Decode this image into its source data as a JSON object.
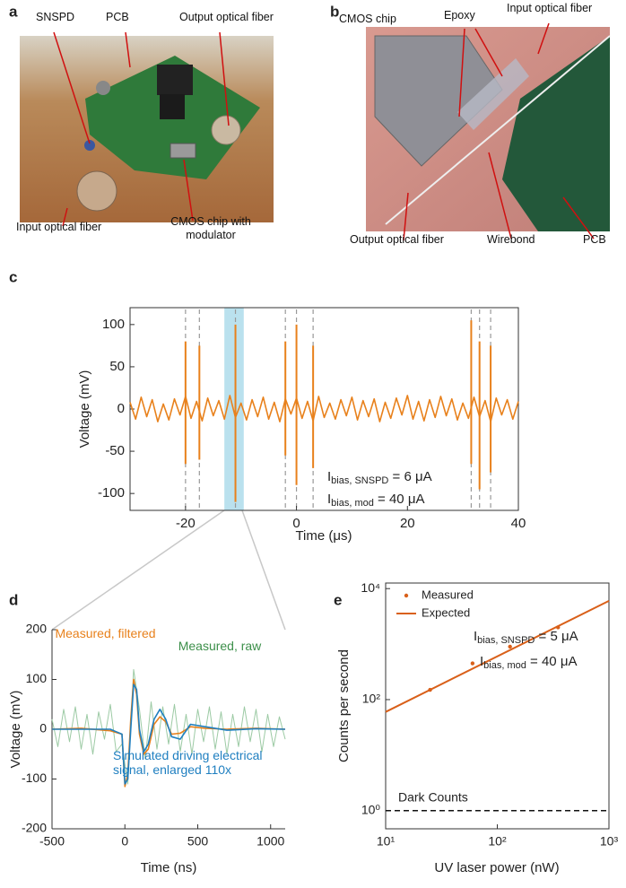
{
  "photos": [
    {
      "label": "a",
      "annotations": [
        "SNSPD",
        "PCB",
        "Output optical fiber",
        "Input optical fiber",
        "CMOS chip with modulator"
      ]
    },
    {
      "label": "b",
      "annotations": [
        "CMOS chip",
        "Epoxy",
        "Input optical fiber",
        "Output optical fiber",
        "Wirebond",
        "PCB"
      ]
    }
  ],
  "chart_data": [
    {
      "type": "line",
      "label": "c",
      "xlabel": "Time (μs)",
      "ylabel": "Voltage (mV)",
      "xlim": [
        -30,
        40
      ],
      "xticks": [
        -20,
        0,
        20,
        40
      ],
      "ylim": [
        -120,
        120
      ],
      "yticks": [
        -100,
        -50,
        0,
        50,
        100
      ],
      "highlight": [
        -13,
        -9.5
      ],
      "series": [
        {
          "color": "#e8811c",
          "x": [
            -30,
            -29,
            -28,
            -27,
            -26,
            -25,
            -24,
            -23,
            -22,
            -21,
            -20,
            -19,
            -18,
            -17,
            -16,
            -15,
            -14,
            -13,
            -12,
            -11,
            -10,
            -9,
            -8,
            -7,
            -6,
            -5,
            -4,
            -3,
            -2,
            -1,
            0,
            1,
            2,
            3,
            4,
            5,
            6,
            7,
            8,
            9,
            10,
            11,
            12,
            13,
            14,
            15,
            16,
            17,
            18,
            19,
            20,
            21,
            22,
            23,
            24,
            25,
            26,
            27,
            28,
            29,
            30,
            31,
            32,
            33,
            34,
            35,
            36,
            37,
            38,
            39,
            40
          ],
          "values": [
            8,
            -12,
            14,
            -9,
            11,
            -15,
            6,
            -13,
            12,
            -7,
            15,
            -11,
            9,
            -14,
            13,
            -8,
            10,
            -12,
            16,
            -10,
            7,
            -13,
            11,
            -9,
            14,
            -12,
            8,
            -15,
            12,
            -6,
            13,
            -11,
            9,
            -14,
            15,
            -10,
            7,
            -12,
            11,
            -8,
            14,
            -13,
            10,
            -9,
            12,
            -15,
            8,
            -11,
            13,
            -7,
            16,
            -12,
            9,
            -14,
            11,
            -10,
            15,
            -8,
            12,
            -13,
            7,
            -11,
            14,
            -9,
            10,
            -15,
            13,
            -7,
            11,
            -12,
            9
          ]
        }
      ],
      "spikes": {
        "x": [
          -20,
          -17.5,
          -11,
          -2,
          0,
          3,
          31.5,
          33,
          35
        ],
        "max": [
          80,
          75,
          100,
          80,
          100,
          75,
          105,
          80,
          75
        ],
        "min": [
          -65,
          -60,
          -110,
          -55,
          -90,
          -70,
          -65,
          -95,
          -75
        ]
      },
      "annotations": [
        {
          "main": "I",
          "sub": "bias, SNSPD",
          "rest": " = 6 μA"
        },
        {
          "main": "I",
          "sub": "bias, mod",
          "rest": " = 40 μA"
        }
      ]
    },
    {
      "type": "line",
      "label": "d",
      "xlabel": "Time (ns)",
      "ylabel": "Voltage (mV)",
      "xlim": [
        -500,
        1100
      ],
      "xticks": [
        -500,
        0,
        500,
        1000
      ],
      "ylim": [
        -200,
        200
      ],
      "yticks": [
        -200,
        -100,
        0,
        100,
        200
      ],
      "series": [
        {
          "name": "Measured, raw",
          "color": "#9ccaa4",
          "x": [
            -500,
            -460,
            -420,
            -380,
            -340,
            -300,
            -260,
            -220,
            -180,
            -140,
            -100,
            -60,
            -20,
            20,
            60,
            100,
            140,
            180,
            220,
            260,
            300,
            340,
            380,
            420,
            460,
            500,
            540,
            580,
            620,
            660,
            700,
            740,
            780,
            820,
            860,
            900,
            940,
            980,
            1020,
            1060,
            1100
          ],
          "values": [
            20,
            -35,
            40,
            -25,
            45,
            -40,
            30,
            -50,
            35,
            -20,
            50,
            -45,
            -30,
            -110,
            120,
            40,
            -60,
            55,
            -40,
            45,
            -30,
            50,
            -45,
            30,
            -50,
            40,
            -25,
            45,
            -40,
            35,
            -50,
            30,
            -35,
            45,
            -25,
            40,
            -45,
            30,
            -35,
            25,
            -20
          ]
        },
        {
          "name": "Measured, filtered",
          "color": "#e8811c",
          "x": [
            -500,
            -300,
            -100,
            -20,
            0,
            20,
            40,
            60,
            80,
            100,
            130,
            160,
            200,
            240,
            280,
            320,
            380,
            450,
            550,
            700,
            900,
            1100
          ],
          "values": [
            0,
            2,
            -3,
            -10,
            -115,
            -90,
            20,
            100,
            70,
            -10,
            -50,
            -40,
            10,
            25,
            15,
            -10,
            -8,
            5,
            2,
            0,
            2,
            0
          ]
        },
        {
          "name": "Simulated driving electrical signal, enlarged 110x",
          "color": "#1f7fc0",
          "x": [
            -500,
            -100,
            -20,
            0,
            20,
            40,
            60,
            80,
            100,
            130,
            160,
            200,
            240,
            280,
            320,
            380,
            450,
            550,
            700,
            900,
            1100
          ],
          "values": [
            0,
            0,
            -10,
            -110,
            -100,
            0,
            90,
            80,
            0,
            -45,
            -30,
            20,
            40,
            20,
            -15,
            -20,
            10,
            5,
            -2,
            1,
            0
          ]
        }
      ]
    },
    {
      "type": "scatter",
      "label": "e",
      "xlabel": "UV laser power (nW)",
      "ylabel": "Counts per second",
      "xscale": "log",
      "yscale": "log",
      "xlim": [
        10,
        1000
      ],
      "xticks": [
        {
          "value": 10,
          "label": "10¹"
        },
        {
          "value": 100,
          "label": "10²"
        },
        {
          "value": 1000,
          "label": "10³"
        }
      ],
      "ylim": [
        0.47,
        12600
      ],
      "yticks": [
        {
          "value": 1,
          "label": "10⁰"
        },
        {
          "value": 100,
          "label": "10²"
        },
        {
          "value": 10000,
          "label": "10⁴"
        }
      ],
      "legend": "upper left",
      "series": [
        {
          "name": "Measured",
          "style": "points",
          "color": "#d9601a",
          "x": [
            25,
            60,
            130,
            350
          ],
          "values": [
            150,
            450,
            900,
            2000
          ]
        },
        {
          "name": "Expected",
          "style": "line",
          "color": "#d9601a",
          "x": [
            10,
            1000
          ],
          "values": [
            60,
            6000
          ]
        }
      ],
      "hline": {
        "value": 1,
        "label": "Dark Counts"
      },
      "annotations": [
        {
          "main": "I",
          "sub": "bias, SNSPD",
          "rest": " = 5 μA"
        },
        {
          "main": "I",
          "sub": "bias, mod",
          "rest": " = 40 μA"
        }
      ]
    }
  ]
}
